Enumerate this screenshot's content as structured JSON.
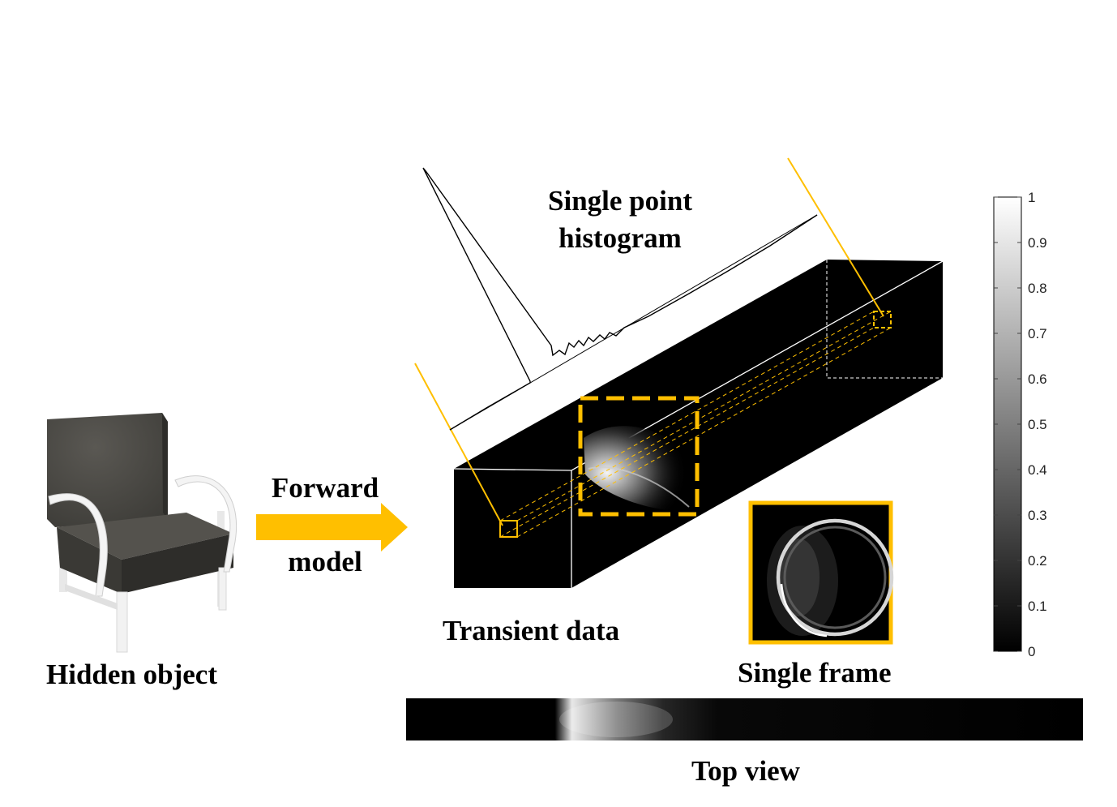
{
  "labels": {
    "hidden_object": "Hidden object",
    "forward_1": "Forward",
    "forward_2": "model",
    "histogram_1": "Single point",
    "histogram_2": "histogram",
    "transient_data": "Transient data",
    "single_frame": "Single frame",
    "top_view": "Top view"
  },
  "colorbar": {
    "ticks": [
      "1",
      "0.9",
      "0.8",
      "0.7",
      "0.6",
      "0.5",
      "0.4",
      "0.3",
      "0.2",
      "0.1",
      "0"
    ]
  },
  "colors": {
    "accent": "#FFBF00",
    "volume": "#000000",
    "chair_body": "#4a4844",
    "chair_frame": "#f4f4f4"
  }
}
